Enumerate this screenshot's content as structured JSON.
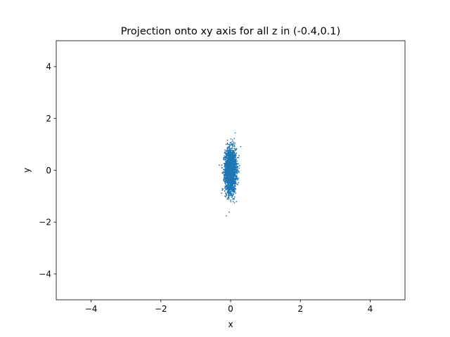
{
  "chart_data": {
    "type": "scatter",
    "title": "Projection onto xy axis for all z in (-0.4,0.1)",
    "xlabel": "x",
    "ylabel": "y",
    "xlim": [
      -5,
      5
    ],
    "ylim": [
      -5,
      5
    ],
    "xticks": [
      -4,
      -2,
      0,
      2,
      4
    ],
    "yticks": [
      -4,
      -2,
      0,
      2,
      4
    ],
    "xtick_labels": [
      "−4",
      "−2",
      "0",
      "2",
      "4"
    ],
    "ytick_labels": [
      "−4",
      "−2",
      "0",
      "2",
      "4"
    ],
    "grid": false,
    "legend": "none",
    "point_color": "#1f77b4",
    "point_count": 2500,
    "distribution": {
      "x_mean": 0.0,
      "x_std": 0.08,
      "y_mean": 0.0,
      "y_std": 0.42
    }
  }
}
